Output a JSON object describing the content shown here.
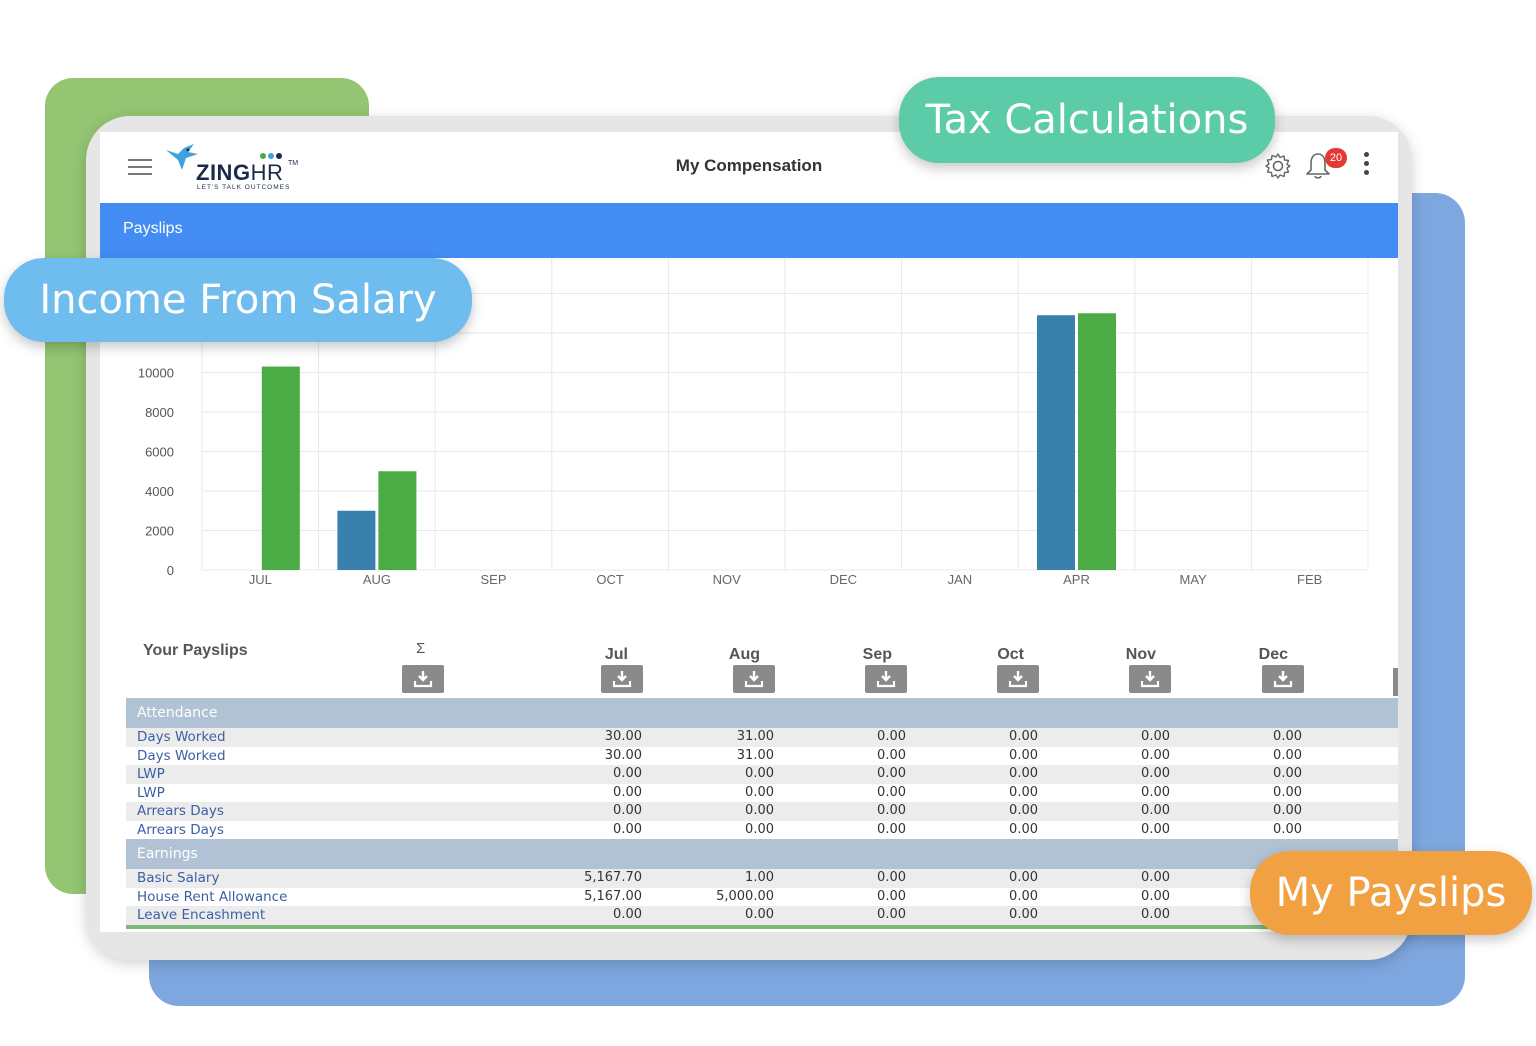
{
  "window": {
    "title": "My Compensation"
  },
  "logo": {
    "name": "ZINGHR",
    "brand_a": "ZING",
    "brand_b": "HR",
    "tm": "TM",
    "tagline": "LET'S TALK OUTCOMES"
  },
  "header": {
    "notification_count": "20"
  },
  "tabs": [
    {
      "label": "Payslips"
    }
  ],
  "callouts": {
    "tax": "Tax Calculations",
    "income": "Income From Salary",
    "payslips": "My Payslips"
  },
  "colors": {
    "tab_blue": "#428cf4",
    "bar_blue": "#3a80ad",
    "bar_green": "#4bab45",
    "tax_pill": "#5bcca7",
    "income_pill": "#6fbcef",
    "payslips_pill": "#f1a042"
  },
  "chart_data": {
    "type": "bar",
    "categories": [
      "JUL",
      "AUG",
      "SEP",
      "OCT",
      "NOV",
      "DEC",
      "JAN",
      "APR",
      "MAY",
      "FEB"
    ],
    "series": [
      {
        "values": [
          0,
          3000,
          0,
          0,
          0,
          0,
          0,
          12900,
          0,
          0
        ],
        "color": "#3a80ad"
      },
      {
        "values": [
          10300,
          5000,
          0,
          0,
          0,
          0,
          0,
          13000,
          0,
          0
        ],
        "color": "#4bab45"
      }
    ],
    "yticks": [
      "0",
      "2000",
      "4000",
      "6000",
      "8000",
      "10000"
    ],
    "ylim": [
      0,
      16000
    ],
    "grid": true
  },
  "payslips": {
    "title": "Your Payslips",
    "sigma": "Σ",
    "months": [
      "Jul",
      "Aug",
      "Sep",
      "Oct",
      "Nov",
      "Dec"
    ],
    "sections": [
      {
        "name": "Attendance",
        "rows": [
          {
            "label": "Days Worked",
            "values": [
              "30.00",
              "31.00",
              "0.00",
              "0.00",
              "0.00",
              "0.00"
            ]
          },
          {
            "label": "Days Worked",
            "values": [
              "30.00",
              "31.00",
              "0.00",
              "0.00",
              "0.00",
              "0.00"
            ]
          },
          {
            "label": "LWP",
            "values": [
              "0.00",
              "0.00",
              "0.00",
              "0.00",
              "0.00",
              "0.00"
            ]
          },
          {
            "label": "LWP",
            "values": [
              "0.00",
              "0.00",
              "0.00",
              "0.00",
              "0.00",
              "0.00"
            ]
          },
          {
            "label": "Arrears Days",
            "values": [
              "0.00",
              "0.00",
              "0.00",
              "0.00",
              "0.00",
              "0.00"
            ]
          },
          {
            "label": "Arrears Days",
            "values": [
              "0.00",
              "0.00",
              "0.00",
              "0.00",
              "0.00",
              "0.00"
            ]
          }
        ]
      },
      {
        "name": "Earnings",
        "rows": [
          {
            "label": "Basic Salary",
            "values": [
              "5,167.70",
              "1.00",
              "0.00",
              "0.00",
              "0.00",
              ""
            ]
          },
          {
            "label": "House Rent Allowance",
            "values": [
              "5,167.00",
              "5,000.00",
              "0.00",
              "0.00",
              "0.00",
              ""
            ]
          },
          {
            "label": "Leave Encashment",
            "values": [
              "0.00",
              "0.00",
              "0.00",
              "0.00",
              "0.00",
              ""
            ]
          }
        ]
      }
    ]
  }
}
